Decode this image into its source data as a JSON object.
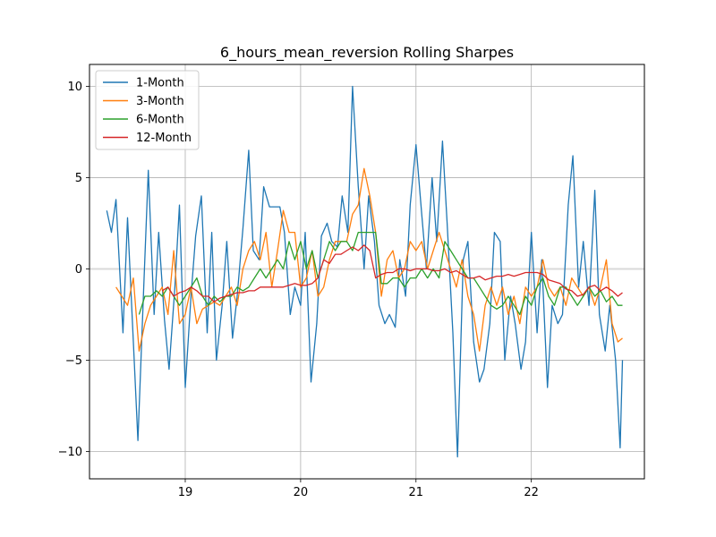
{
  "chart_data": {
    "type": "line",
    "title": "6_hours_mean_reversion Rolling Sharpes",
    "xlabel": "",
    "ylabel": "",
    "xlim": [
      18.17,
      22.98
    ],
    "ylim": [
      -11.5,
      11.2
    ],
    "x_ticks": [
      19,
      20,
      21,
      22
    ],
    "x_tick_labels": [
      "19",
      "20",
      "21",
      "22"
    ],
    "y_ticks": [
      -10,
      -5,
      0,
      5,
      10
    ],
    "y_tick_labels": [
      "−10",
      "−5",
      "0",
      "5",
      "10"
    ],
    "grid": true,
    "legend_position": "top-left",
    "zero_line": 0,
    "series": [
      {
        "name": "1-Month",
        "color": "#1f77b4",
        "x": [
          18.32,
          18.36,
          18.4,
          18.46,
          18.5,
          18.55,
          18.59,
          18.64,
          18.68,
          18.73,
          18.77,
          18.82,
          18.86,
          18.91,
          18.95,
          19.0,
          19.05,
          19.09,
          19.14,
          19.19,
          19.23,
          19.27,
          19.32,
          19.36,
          19.41,
          19.45,
          19.5,
          19.55,
          19.59,
          19.64,
          19.68,
          19.73,
          19.78,
          19.82,
          19.86,
          19.91,
          19.95,
          20.0,
          20.04,
          20.09,
          20.14,
          20.18,
          20.23,
          20.27,
          20.32,
          20.36,
          20.41,
          20.45,
          20.5,
          20.55,
          20.59,
          20.64,
          20.68,
          20.73,
          20.77,
          20.82,
          20.86,
          20.91,
          20.95,
          21.0,
          21.05,
          21.09,
          21.14,
          21.18,
          21.23,
          21.27,
          21.32,
          21.36,
          21.41,
          21.45,
          21.5,
          21.55,
          21.59,
          21.64,
          21.68,
          21.73,
          21.77,
          21.82,
          21.86,
          21.91,
          21.95,
          22.0,
          22.05,
          22.09,
          22.14,
          22.18,
          22.23,
          22.27,
          22.32,
          22.36,
          22.41,
          22.45,
          22.5,
          22.55,
          22.59,
          22.64,
          22.68,
          22.73,
          22.77,
          22.79
        ],
        "y": [
          3.2,
          2.0,
          3.8,
          -3.5,
          2.8,
          -4.0,
          -9.4,
          -1.0,
          5.4,
          -2.5,
          2.0,
          -2.8,
          -5.5,
          -1.0,
          3.5,
          -6.5,
          -1.5,
          1.8,
          4.0,
          -3.5,
          2.0,
          -5.0,
          -2.0,
          1.5,
          -3.8,
          -1.5,
          2.2,
          6.5,
          1.0,
          0.5,
          4.5,
          3.4,
          3.4,
          3.4,
          2.0,
          -2.5,
          -1.0,
          -2.0,
          2.0,
          -6.2,
          -3.0,
          1.8,
          2.5,
          1.5,
          1.2,
          4.0,
          2.0,
          10.0,
          4.5,
          0.0,
          4.0,
          1.5,
          -2.0,
          -3.0,
          -2.5,
          -3.2,
          0.5,
          -1.5,
          3.5,
          6.8,
          3.0,
          0.0,
          5.0,
          1.5,
          7.0,
          2.5,
          -3.5,
          -10.3,
          0.5,
          1.5,
          -4.0,
          -6.2,
          -5.5,
          -3.0,
          2.0,
          1.5,
          -5.0,
          -1.5,
          -3.0,
          -5.5,
          -4.0,
          2.0,
          -3.5,
          0.5,
          -6.5,
          -2.0,
          -3.0,
          -2.5,
          3.5,
          6.2,
          -1.0,
          1.5,
          -2.0,
          4.3,
          -2.5,
          -4.5,
          -2.0,
          -5.0,
          -9.8,
          -5.0
        ]
      },
      {
        "name": "3-Month",
        "color": "#ff7f0e",
        "x": [
          18.4,
          18.45,
          18.5,
          18.55,
          18.6,
          18.65,
          18.7,
          18.75,
          18.8,
          18.85,
          18.9,
          18.95,
          19.0,
          19.05,
          19.1,
          19.15,
          19.2,
          19.25,
          19.3,
          19.35,
          19.4,
          19.45,
          19.5,
          19.55,
          19.6,
          19.65,
          19.7,
          19.75,
          19.8,
          19.85,
          19.9,
          19.95,
          20.0,
          20.05,
          20.1,
          20.15,
          20.2,
          20.25,
          20.3,
          20.35,
          20.4,
          20.45,
          20.5,
          20.55,
          20.6,
          20.65,
          20.7,
          20.75,
          20.8,
          20.85,
          20.9,
          20.95,
          21.0,
          21.05,
          21.1,
          21.15,
          21.2,
          21.25,
          21.3,
          21.35,
          21.4,
          21.45,
          21.5,
          21.55,
          21.6,
          21.65,
          21.7,
          21.75,
          21.8,
          21.85,
          21.9,
          21.95,
          22.0,
          22.05,
          22.1,
          22.15,
          22.2,
          22.25,
          22.3,
          22.35,
          22.4,
          22.45,
          22.5,
          22.55,
          22.6,
          22.65,
          22.7,
          22.75,
          22.79
        ],
        "y": [
          -1.0,
          -1.5,
          -2.0,
          -0.5,
          -4.5,
          -3.0,
          -2.0,
          -1.5,
          -1.0,
          -2.5,
          1.0,
          -3.0,
          -2.5,
          -1.0,
          -3.0,
          -2.2,
          -2.0,
          -1.8,
          -2.0,
          -1.5,
          -1.0,
          -2.0,
          0.0,
          1.0,
          1.5,
          0.5,
          2.0,
          -1.0,
          1.0,
          3.2,
          2.0,
          2.0,
          -1.0,
          -0.5,
          1.0,
          -1.5,
          -1.0,
          0.5,
          1.5,
          1.5,
          1.5,
          3.0,
          3.5,
          5.5,
          4.0,
          2.0,
          -1.5,
          0.5,
          1.0,
          -0.5,
          0.0,
          1.5,
          1.0,
          1.5,
          0.0,
          1.0,
          2.0,
          1.0,
          0.0,
          -1.0,
          0.5,
          -1.5,
          -2.5,
          -4.5,
          -2.0,
          -1.0,
          -2.0,
          -1.0,
          -2.5,
          -1.5,
          -3.0,
          -1.0,
          -1.5,
          -1.0,
          0.5,
          -1.0,
          -1.5,
          -1.0,
          -2.0,
          -0.5,
          -1.0,
          -1.5,
          -1.0,
          -2.0,
          -1.0,
          0.5,
          -3.0,
          -4.0,
          -3.8
        ]
      },
      {
        "name": "6-Month",
        "color": "#2ca02c",
        "x": [
          18.6,
          18.65,
          18.7,
          18.75,
          18.8,
          18.85,
          18.9,
          18.95,
          19.0,
          19.05,
          19.1,
          19.15,
          19.2,
          19.25,
          19.3,
          19.35,
          19.4,
          19.45,
          19.5,
          19.55,
          19.6,
          19.65,
          19.7,
          19.75,
          19.8,
          19.85,
          19.9,
          19.95,
          20.0,
          20.05,
          20.1,
          20.15,
          20.2,
          20.25,
          20.3,
          20.35,
          20.4,
          20.45,
          20.5,
          20.55,
          20.6,
          20.65,
          20.7,
          20.75,
          20.8,
          20.85,
          20.9,
          20.95,
          21.0,
          21.05,
          21.1,
          21.15,
          21.2,
          21.25,
          21.3,
          21.35,
          21.4,
          21.45,
          21.5,
          21.55,
          21.6,
          21.65,
          21.7,
          21.75,
          21.8,
          21.85,
          21.9,
          21.95,
          22.0,
          22.05,
          22.1,
          22.15,
          22.2,
          22.25,
          22.3,
          22.35,
          22.4,
          22.45,
          22.5,
          22.55,
          22.6,
          22.65,
          22.7,
          22.75,
          22.79
        ],
        "y": [
          -2.5,
          -1.5,
          -1.5,
          -1.2,
          -1.5,
          -1.0,
          -1.5,
          -2.0,
          -1.5,
          -1.0,
          -0.5,
          -1.5,
          -2.0,
          -1.5,
          -1.8,
          -1.5,
          -1.5,
          -1.0,
          -1.2,
          -1.0,
          -0.5,
          0.0,
          -0.5,
          0.0,
          0.5,
          0.0,
          1.5,
          0.5,
          1.5,
          0.0,
          1.0,
          -0.5,
          0.5,
          1.5,
          1.0,
          1.5,
          1.5,
          1.0,
          2.0,
          2.0,
          2.0,
          2.0,
          -0.8,
          -0.8,
          -0.5,
          -0.5,
          -1.0,
          -0.5,
          -0.5,
          0.0,
          -0.5,
          0.0,
          -0.5,
          1.5,
          1.0,
          0.5,
          0.0,
          -0.5,
          -0.5,
          -1.0,
          -1.5,
          -2.0,
          -2.2,
          -2.0,
          -1.5,
          -2.0,
          -2.5,
          -1.5,
          -2.0,
          -1.0,
          -0.5,
          -1.5,
          -2.0,
          -1.0,
          -1.0,
          -1.5,
          -2.0,
          -1.5,
          -1.0,
          -1.5,
          -1.2,
          -1.8,
          -1.5,
          -2.0,
          -2.0
        ]
      },
      {
        "name": "12-Month",
        "color": "#d62728",
        "x": [
          18.8,
          18.85,
          18.9,
          18.95,
          19.0,
          19.05,
          19.1,
          19.15,
          19.2,
          19.25,
          19.3,
          19.35,
          19.4,
          19.45,
          19.5,
          19.55,
          19.6,
          19.65,
          19.7,
          19.75,
          19.8,
          19.85,
          19.9,
          19.95,
          20.0,
          20.05,
          20.1,
          20.15,
          20.2,
          20.25,
          20.3,
          20.35,
          20.4,
          20.45,
          20.5,
          20.55,
          20.6,
          20.65,
          20.7,
          20.75,
          20.8,
          20.85,
          20.9,
          20.95,
          21.0,
          21.05,
          21.1,
          21.15,
          21.2,
          21.25,
          21.3,
          21.35,
          21.4,
          21.45,
          21.5,
          21.55,
          21.6,
          21.65,
          21.7,
          21.75,
          21.8,
          21.85,
          21.9,
          21.95,
          22.0,
          22.05,
          22.1,
          22.15,
          22.2,
          22.25,
          22.3,
          22.35,
          22.4,
          22.45,
          22.5,
          22.55,
          22.6,
          22.65,
          22.7,
          22.75,
          22.79
        ],
        "y": [
          -1.2,
          -1.0,
          -1.5,
          -1.3,
          -1.2,
          -1.0,
          -1.2,
          -1.5,
          -1.5,
          -1.8,
          -1.6,
          -1.5,
          -1.4,
          -1.3,
          -1.3,
          -1.2,
          -1.2,
          -1.0,
          -1.0,
          -1.0,
          -1.0,
          -1.0,
          -0.9,
          -0.8,
          -0.9,
          -0.9,
          -0.8,
          -0.5,
          0.5,
          0.3,
          0.8,
          0.8,
          1.0,
          1.2,
          1.0,
          1.3,
          1.0,
          -0.5,
          -0.3,
          -0.2,
          -0.2,
          0.0,
          0.0,
          -0.1,
          0.0,
          0.0,
          0.0,
          -0.1,
          -0.1,
          0.0,
          -0.2,
          -0.1,
          -0.3,
          -0.5,
          -0.5,
          -0.4,
          -0.6,
          -0.5,
          -0.4,
          -0.4,
          -0.3,
          -0.4,
          -0.3,
          -0.2,
          -0.2,
          -0.2,
          -0.3,
          -0.6,
          -0.7,
          -0.8,
          -1.1,
          -1.2,
          -1.5,
          -1.4,
          -1.0,
          -0.9,
          -1.2,
          -1.0,
          -1.2,
          -1.5,
          -1.3
        ]
      }
    ]
  }
}
